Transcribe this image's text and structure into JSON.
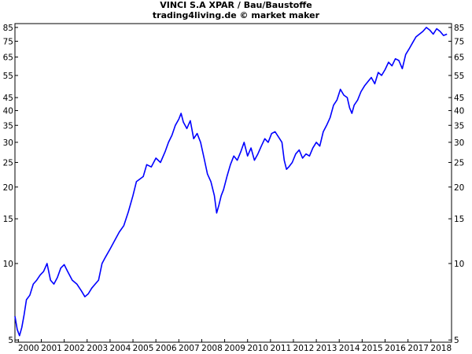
{
  "chart_data": {
    "type": "line",
    "title": "VINCI S.A XPAR / Bau/Baustoffe",
    "subtitle": "trading4living.de © market maker",
    "y_scale": "log",
    "ylim": [
      4.9,
      88
    ],
    "xlim": [
      1999.85,
      2018.9
    ],
    "y_ticks": [
      5,
      10,
      15,
      20,
      25,
      30,
      35,
      40,
      45,
      55,
      65,
      75,
      85
    ],
    "x_ticks": [
      2000,
      2001,
      2002,
      2003,
      2004,
      2005,
      2006,
      2007,
      2008,
      2009,
      2010,
      2011,
      2012,
      2013,
      2014,
      2015,
      2016,
      2017,
      2018
    ],
    "line_color": "#0000ff",
    "series": [
      {
        "x": [
          1999.85,
          1999.95,
          2000.05,
          2000.15,
          2000.25,
          2000.35,
          2000.5,
          2000.65,
          2000.8,
          2000.95,
          2001.1,
          2001.25,
          2001.4,
          2001.55,
          2001.7,
          2001.85,
          2002.0,
          2002.15,
          2002.35,
          2002.55,
          2002.75,
          2002.9,
          2003.05,
          2003.2,
          2003.35,
          2003.5,
          2003.65,
          2003.8,
          2004.0,
          2004.2,
          2004.4,
          2004.6,
          2004.8,
          2005.0,
          2005.15,
          2005.3,
          2005.45,
          2005.6,
          2005.8,
          2006.0,
          2006.2,
          2006.4,
          2006.55,
          2006.7,
          2006.85,
          2007.0,
          2007.1,
          2007.2,
          2007.35,
          2007.5,
          2007.65,
          2007.8,
          2007.95,
          2008.1,
          2008.25,
          2008.4,
          2008.55,
          2008.65,
          2008.75,
          2008.85,
          2008.95,
          2009.1,
          2009.25,
          2009.4,
          2009.55,
          2009.7,
          2009.85,
          2010.0,
          2010.15,
          2010.3,
          2010.45,
          2010.6,
          2010.75,
          2010.9,
          2011.05,
          2011.2,
          2011.35,
          2011.5,
          2011.6,
          2011.7,
          2011.8,
          2011.95,
          2012.1,
          2012.25,
          2012.4,
          2012.55,
          2012.7,
          2012.85,
          2013.0,
          2013.15,
          2013.3,
          2013.45,
          2013.6,
          2013.75,
          2013.9,
          2014.05,
          2014.2,
          2014.35,
          2014.45,
          2014.55,
          2014.65,
          2014.8,
          2014.95,
          2015.1,
          2015.25,
          2015.4,
          2015.55,
          2015.7,
          2015.85,
          2016.0,
          2016.15,
          2016.3,
          2016.45,
          2016.6,
          2016.75,
          2016.9,
          2017.05,
          2017.2,
          2017.35,
          2017.5,
          2017.65,
          2017.8,
          2017.95,
          2018.1,
          2018.25,
          2018.4,
          2018.55,
          2018.7
        ],
        "values": [
          6.2,
          5.5,
          5.2,
          5.6,
          6.3,
          7.2,
          7.5,
          8.3,
          8.6,
          9.0,
          9.3,
          10.0,
          8.6,
          8.3,
          8.8,
          9.6,
          9.9,
          9.3,
          8.6,
          8.3,
          7.8,
          7.4,
          7.6,
          8.0,
          8.3,
          8.6,
          10.0,
          10.6,
          11.4,
          12.3,
          13.3,
          14.1,
          16.0,
          18.5,
          21.0,
          21.5,
          22.0,
          24.5,
          24.0,
          26.0,
          25.0,
          27.5,
          30.0,
          32.0,
          35.0,
          37.0,
          39.0,
          36.0,
          34.0,
          36.5,
          31.0,
          32.5,
          30.0,
          26.0,
          22.5,
          21.0,
          18.5,
          15.8,
          17.0,
          18.5,
          19.5,
          22.0,
          24.5,
          26.5,
          25.5,
          27.5,
          30.0,
          26.5,
          28.5,
          25.5,
          27.0,
          29.0,
          31.0,
          30.0,
          32.5,
          33.0,
          31.5,
          30.0,
          25.5,
          23.5,
          24.0,
          25.0,
          27.0,
          28.0,
          26.0,
          27.0,
          26.5,
          28.5,
          30.0,
          29.0,
          33.0,
          35.0,
          37.5,
          42.0,
          44.0,
          48.5,
          46.0,
          45.0,
          41.0,
          39.0,
          42.0,
          44.0,
          47.5,
          50.0,
          52.0,
          54.0,
          51.0,
          56.5,
          55.0,
          58.0,
          62.0,
          60.0,
          64.0,
          63.0,
          58.5,
          66.5,
          70.0,
          74.0,
          78.0,
          80.0,
          82.0,
          85.0,
          83.0,
          80.0,
          84.0,
          82.0,
          79.0,
          80.0
        ]
      }
    ]
  }
}
